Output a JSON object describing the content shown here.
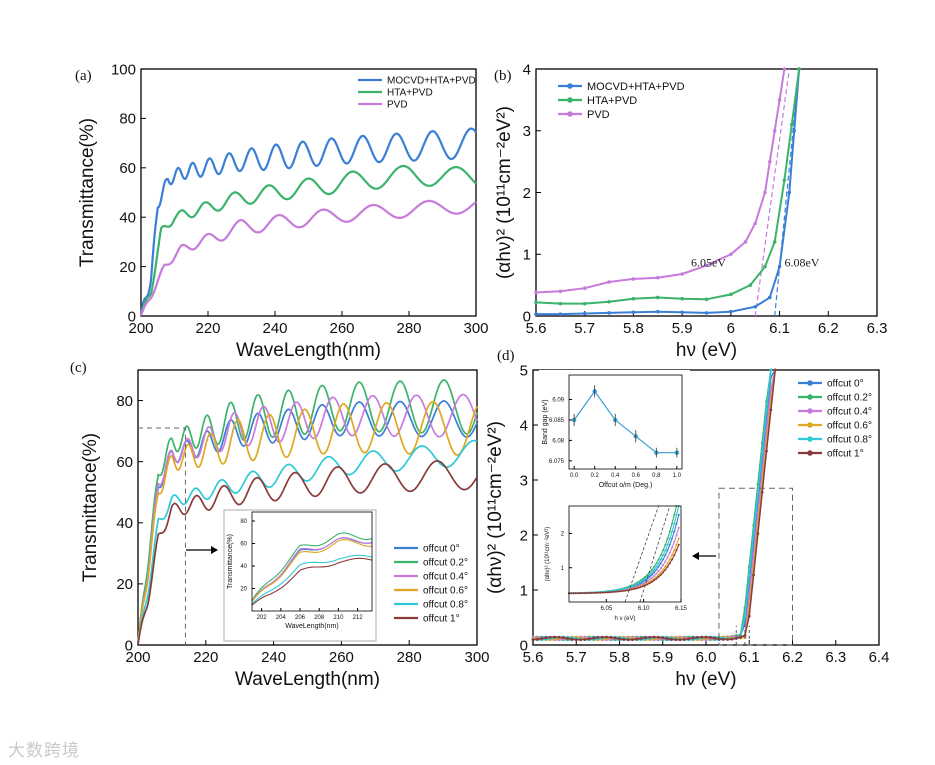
{
  "watermark": {
    "text": "大数跨境"
  },
  "chart_data": [
    {
      "type": "line",
      "panel_label": "(a)",
      "xlabel": "WaveLength(nm)",
      "ylabel": "Transmittance(%)",
      "xlim": [
        200,
        300
      ],
      "ylim": [
        0,
        100
      ],
      "xticks": [
        200,
        220,
        240,
        260,
        280,
        300
      ],
      "yticks": [
        0,
        20,
        40,
        60,
        80,
        100
      ],
      "legend_position": "top-right",
      "series": [
        {
          "name": "MOCVD+HTA+PVD",
          "color": "#3a7fd5",
          "base": [
            [
              200,
              0
            ],
            [
              203,
              15
            ],
            [
              205,
              45
            ],
            [
              208,
              55
            ],
            [
              212,
              58
            ],
            [
              230,
              63
            ],
            [
              260,
              67
            ],
            [
              300,
              70
            ]
          ],
          "amp": [
            [
              205,
              2
            ],
            [
              215,
              3
            ],
            [
              240,
              5
            ],
            [
              300,
              6
            ]
          ],
          "period": [
            [
              205,
              3.2
            ],
            [
              230,
              6.8
            ],
            [
              270,
              10
            ],
            [
              300,
              12
            ]
          ]
        },
        {
          "name": "HTA+PVD",
          "color": "#3bb36b",
          "base": [
            [
              200,
              0
            ],
            [
              203,
              10
            ],
            [
              206,
              34
            ],
            [
              210,
              40
            ],
            [
              230,
              48
            ],
            [
              260,
              54
            ],
            [
              280,
              57
            ],
            [
              300,
              56
            ]
          ],
          "amp": [
            [
              205,
              1.5
            ],
            [
              230,
              3
            ],
            [
              260,
              4
            ],
            [
              300,
              4
            ]
          ],
          "period": [
            [
              205,
              5
            ],
            [
              230,
              10
            ],
            [
              270,
              15
            ],
            [
              300,
              17
            ]
          ]
        },
        {
          "name": "PVD",
          "color": "#c77bdb",
          "base": [
            [
              200,
              0
            ],
            [
              203,
              8
            ],
            [
              207,
              20
            ],
            [
              212,
              27
            ],
            [
              230,
              36
            ],
            [
              260,
              41
            ],
            [
              300,
              45
            ]
          ],
          "amp": [
            [
              205,
              1
            ],
            [
              230,
              3
            ],
            [
              260,
              3
            ],
            [
              300,
              3
            ]
          ],
          "period": [
            [
              205,
              5
            ],
            [
              230,
              11
            ],
            [
              270,
              16
            ],
            [
              300,
              18
            ]
          ]
        }
      ]
    },
    {
      "type": "line",
      "panel_label": "(b)",
      "xlabel": "hν (eV)",
      "ylabel": "(αhν)² (10¹¹cm⁻²eV²)",
      "xlim": [
        5.6,
        6.3
      ],
      "ylim": [
        0,
        4
      ],
      "xticks": [
        5.6,
        5.7,
        5.8,
        5.9,
        6.0,
        6.1,
        6.2,
        6.3
      ],
      "yticks": [
        0,
        1,
        2,
        3,
        4
      ],
      "legend_position": "top-left",
      "annotations": [
        {
          "text": "6.05eV",
          "x": 5.99,
          "y": 0.8
        },
        {
          "text": "6.08eV",
          "x": 6.11,
          "y": 0.8
        }
      ],
      "fit_lines": [
        {
          "color": "#c77bdb",
          "x": [
            6.05,
            6.12
          ],
          "y": [
            0,
            4
          ]
        },
        {
          "color": "#3a7fd5",
          "x": [
            6.09,
            6.14
          ],
          "y": [
            0,
            4
          ]
        }
      ],
      "series": [
        {
          "name": "MOCVD+HTA+PVD",
          "color": "#3a7fd5",
          "x": [
            5.6,
            5.65,
            5.7,
            5.75,
            5.8,
            5.85,
            5.9,
            5.95,
            6.0,
            6.05,
            6.08,
            6.1,
            6.12,
            6.13,
            6.14
          ],
          "y": [
            0.03,
            0.03,
            0.04,
            0.05,
            0.06,
            0.07,
            0.06,
            0.05,
            0.07,
            0.15,
            0.3,
            0.8,
            2.0,
            3.0,
            4.0
          ]
        },
        {
          "name": "HTA+PVD",
          "color": "#3bb36b",
          "x": [
            5.6,
            5.65,
            5.7,
            5.75,
            5.8,
            5.85,
            5.9,
            5.95,
            6.0,
            6.04,
            6.07,
            6.09,
            6.11,
            6.125,
            6.14
          ],
          "y": [
            0.22,
            0.2,
            0.2,
            0.23,
            0.28,
            0.3,
            0.28,
            0.27,
            0.35,
            0.5,
            0.8,
            1.2,
            2.2,
            3.1,
            4.0
          ]
        },
        {
          "name": "PVD",
          "color": "#c77bdb",
          "x": [
            5.6,
            5.65,
            5.7,
            5.75,
            5.8,
            5.85,
            5.9,
            5.95,
            6.0,
            6.03,
            6.05,
            6.07,
            6.08,
            6.09,
            6.1,
            6.11
          ],
          "y": [
            0.38,
            0.4,
            0.45,
            0.55,
            0.6,
            0.62,
            0.68,
            0.82,
            1.0,
            1.2,
            1.5,
            2.0,
            2.5,
            3.0,
            3.5,
            4.0
          ]
        }
      ]
    },
    {
      "type": "line",
      "panel_label": "(c)",
      "xlabel": "WaveLength(nm)",
      "ylabel": "Transmittance(%)",
      "xlim": [
        200,
        300
      ],
      "ylim": [
        0,
        90
      ],
      "xticks": [
        200,
        220,
        240,
        260,
        280,
        300
      ],
      "yticks": [
        0,
        20,
        40,
        60,
        80
      ],
      "legend_position": "right",
      "zoom_box": {
        "x": [
          200,
          214
        ],
        "y": [
          0,
          71
        ]
      },
      "series": [
        {
          "name": "offcut 0°",
          "color": "#3a7fd5",
          "base": [
            [
              200,
              0
            ],
            [
              203,
              25
            ],
            [
              206,
              52
            ],
            [
              210,
              62
            ],
            [
              230,
              70
            ],
            [
              260,
              74
            ],
            [
              300,
              74
            ]
          ],
          "amp": [
            [
              205,
              2
            ],
            [
              230,
              5
            ],
            [
              300,
              6
            ]
          ],
          "period": [
            [
              205,
              4
            ],
            [
              230,
              8
            ],
            [
              270,
              12
            ],
            [
              300,
              14
            ]
          ]
        },
        {
          "name": "offcut 0.2°",
          "color": "#3bb36b",
          "base": [
            [
              200,
              0
            ],
            [
              203,
              28
            ],
            [
              206,
              56
            ],
            [
              210,
              66
            ],
            [
              230,
              74
            ],
            [
              260,
              78
            ],
            [
              300,
              78
            ]
          ],
          "amp": [
            [
              205,
              2
            ],
            [
              230,
              7
            ],
            [
              300,
              9
            ]
          ],
          "period": [
            [
              205,
              4
            ],
            [
              230,
              8
            ],
            [
              270,
              12
            ],
            [
              300,
              14
            ]
          ]
        },
        {
          "name": "offcut 0.4°",
          "color": "#c77bdb",
          "base": [
            [
              200,
              0
            ],
            [
              203,
              25
            ],
            [
              206,
              53
            ],
            [
              210,
              62
            ],
            [
              230,
              71
            ],
            [
              260,
              75
            ],
            [
              300,
              75
            ]
          ],
          "amp": [
            [
              205,
              2
            ],
            [
              230,
              6
            ],
            [
              300,
              7
            ]
          ],
          "period": [
            [
              205,
              4
            ],
            [
              230,
              8.5
            ],
            [
              270,
              12.5
            ],
            [
              300,
              14.5
            ]
          ]
        },
        {
          "name": "offcut 0.6°",
          "color": "#e0a822",
          "base": [
            [
              200,
              0
            ],
            [
              203,
              24
            ],
            [
              206,
              50
            ],
            [
              210,
              60
            ],
            [
              230,
              67
            ],
            [
              260,
              71
            ],
            [
              300,
              71
            ]
          ],
          "amp": [
            [
              205,
              2
            ],
            [
              230,
              7
            ],
            [
              300,
              9
            ]
          ],
          "period": [
            [
              205,
              4
            ],
            [
              230,
              9
            ],
            [
              270,
              13
            ],
            [
              300,
              15
            ]
          ]
        },
        {
          "name": "offcut 0.8°",
          "color": "#2fc9d6",
          "base": [
            [
              200,
              0
            ],
            [
              203,
              18
            ],
            [
              206,
              40
            ],
            [
              210,
              47
            ],
            [
              230,
              53
            ],
            [
              260,
              59
            ],
            [
              300,
              63
            ]
          ],
          "amp": [
            [
              205,
              1.5
            ],
            [
              230,
              3
            ],
            [
              300,
              4
            ]
          ],
          "period": [
            [
              205,
              4.5
            ],
            [
              230,
              9.5
            ],
            [
              270,
              14
            ],
            [
              300,
              16
            ]
          ]
        },
        {
          "name": "offcut 1°",
          "color": "#8b3a3a",
          "base": [
            [
              200,
              0
            ],
            [
              203,
              15
            ],
            [
              206,
              35
            ],
            [
              210,
              44
            ],
            [
              230,
              50
            ],
            [
              260,
              54
            ],
            [
              300,
              56
            ]
          ],
          "amp": [
            [
              205,
              1.5
            ],
            [
              230,
              4
            ],
            [
              300,
              5
            ]
          ],
          "period": [
            [
              205,
              4.5
            ],
            [
              230,
              10
            ],
            [
              270,
              14.5
            ],
            [
              300,
              17
            ]
          ]
        }
      ],
      "inset": {
        "xlabel": "WaveLength(nm)",
        "ylabel": "Transmittance(%)",
        "xlim": [
          201,
          213.5
        ],
        "ylim": [
          0,
          88
        ],
        "xticks": [
          202,
          204,
          206,
          208,
          210,
          212
        ],
        "yticks": [
          20,
          40,
          60,
          80
        ]
      }
    },
    {
      "type": "line",
      "panel_label": "(d)",
      "xlabel": "hν (eV)",
      "ylabel": "(αhν)² (10¹¹cm⁻²eV²)",
      "xlim": [
        5.6,
        6.4
      ],
      "ylim": [
        0,
        5
      ],
      "xticks": [
        5.6,
        5.7,
        5.8,
        5.9,
        6.0,
        6.1,
        6.2,
        6.3,
        6.4
      ],
      "yticks": [
        0,
        1,
        2,
        3,
        4,
        5
      ],
      "legend_position": "top-right",
      "zoom_box": {
        "x": [
          6.03,
          6.2
        ],
        "y": [
          0,
          2.85
        ]
      },
      "series": [
        {
          "name": "offcut 0°",
          "color": "#3a7fd5"
        },
        {
          "name": "offcut 0.2°",
          "color": "#3bb36b"
        },
        {
          "name": "offcut 0.4°",
          "color": "#c77bdb"
        },
        {
          "name": "offcut 0.6°",
          "color": "#e0a822"
        },
        {
          "name": "offcut 0.8°",
          "color": "#2fc9d6"
        },
        {
          "name": "offcut 1°",
          "color": "#8b3a3a"
        }
      ],
      "inset_top": {
        "type": "line",
        "xlabel": "Offcut o/m (Deg.)",
        "ylabel": "Band gap (eV)",
        "x": [
          0.0,
          0.2,
          0.4,
          0.6,
          0.8,
          1.0
        ],
        "y": [
          6.085,
          6.092,
          6.085,
          6.081,
          6.077,
          6.077
        ],
        "err": [
          0.0015,
          0.0015,
          0.0015,
          0.0015,
          0.0012,
          0.0012
        ],
        "xlim": [
          -0.05,
          1.05
        ],
        "ylim": [
          6.073,
          6.096
        ],
        "xticks": [
          0.0,
          0.2,
          0.4,
          0.6,
          0.8,
          1.0
        ],
        "yticks": [
          6.075,
          6.08,
          6.085,
          6.09
        ],
        "ytick_labels": [
          "6.075",
          "6.08",
          "6.085",
          "6.09"
        ],
        "color": "#3a9fd6"
      },
      "inset_bottom": {
        "xlabel": "h ν (eV)",
        "ylabel": "(αhν)² (10¹¹cm⁻²eV²)",
        "xlim": [
          6.0,
          6.15
        ],
        "ylim": [
          0,
          2.8
        ],
        "xticks": [
          6.05,
          6.1,
          6.15
        ],
        "yticks": [
          1,
          2
        ]
      }
    }
  ]
}
